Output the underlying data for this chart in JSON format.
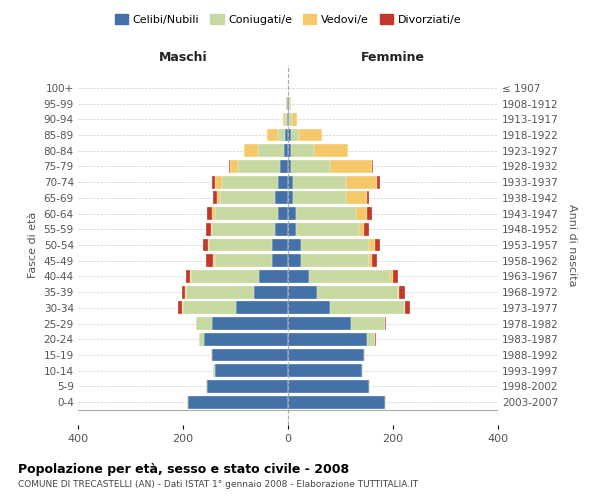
{
  "age_groups": [
    "0-4",
    "5-9",
    "10-14",
    "15-19",
    "20-24",
    "25-29",
    "30-34",
    "35-39",
    "40-44",
    "45-49",
    "50-54",
    "55-59",
    "60-64",
    "65-69",
    "70-74",
    "75-79",
    "80-84",
    "85-89",
    "90-94",
    "95-99",
    "100+"
  ],
  "birth_years": [
    "2003-2007",
    "1998-2002",
    "1993-1997",
    "1988-1992",
    "1983-1987",
    "1978-1982",
    "1973-1977",
    "1968-1972",
    "1963-1967",
    "1958-1962",
    "1953-1957",
    "1948-1952",
    "1943-1947",
    "1938-1942",
    "1933-1937",
    "1928-1932",
    "1923-1927",
    "1918-1922",
    "1913-1917",
    "1908-1912",
    "≤ 1907"
  ],
  "male": {
    "celibi": [
      190,
      155,
      140,
      145,
      160,
      145,
      100,
      65,
      55,
      30,
      30,
      25,
      20,
      25,
      20,
      15,
      8,
      5,
      2,
      1,
      0
    ],
    "coniugati": [
      2,
      2,
      2,
      2,
      10,
      30,
      100,
      130,
      130,
      110,
      120,
      120,
      120,
      105,
      105,
      80,
      50,
      15,
      3,
      1,
      0
    ],
    "vedovi": [
      0,
      0,
      0,
      0,
      0,
      0,
      2,
      2,
      2,
      2,
      2,
      2,
      5,
      5,
      15,
      15,
      25,
      20,
      5,
      2,
      0
    ],
    "divorziati": [
      0,
      0,
      0,
      0,
      0,
      0,
      8,
      5,
      8,
      15,
      10,
      10,
      10,
      8,
      5,
      2,
      0,
      0,
      0,
      0,
      0
    ]
  },
  "female": {
    "nubili": [
      185,
      155,
      140,
      145,
      150,
      120,
      80,
      55,
      40,
      25,
      25,
      15,
      15,
      10,
      10,
      5,
      5,
      5,
      2,
      1,
      0
    ],
    "coniugate": [
      2,
      2,
      2,
      2,
      15,
      65,
      140,
      155,
      155,
      130,
      130,
      120,
      115,
      100,
      100,
      75,
      45,
      15,
      5,
      2,
      0
    ],
    "vedove": [
      0,
      0,
      0,
      0,
      0,
      0,
      2,
      2,
      5,
      5,
      10,
      10,
      20,
      40,
      60,
      80,
      65,
      45,
      10,
      3,
      0
    ],
    "divorziate": [
      0,
      0,
      0,
      0,
      2,
      2,
      10,
      10,
      10,
      10,
      10,
      10,
      10,
      5,
      5,
      2,
      0,
      0,
      0,
      0,
      0
    ]
  },
  "colors": {
    "celibi": "#4472a8",
    "coniugati": "#c5d9a0",
    "vedovi": "#f5c96a",
    "divorziati": "#c0392b"
  },
  "xlim": 400,
  "title": "Popolazione per età, sesso e stato civile - 2008",
  "subtitle": "COMUNE DI TRECASTELLI (AN) - Dati ISTAT 1° gennaio 2008 - Elaborazione TUTTITALIA.IT",
  "ylabel": "Fasce di età",
  "ylabel_right": "Anni di nascita",
  "xlabel_male": "Maschi",
  "xlabel_female": "Femmine",
  "legend_labels": [
    "Celibi/Nubili",
    "Coniugati/e",
    "Vedovi/e",
    "Divorziati/e"
  ]
}
